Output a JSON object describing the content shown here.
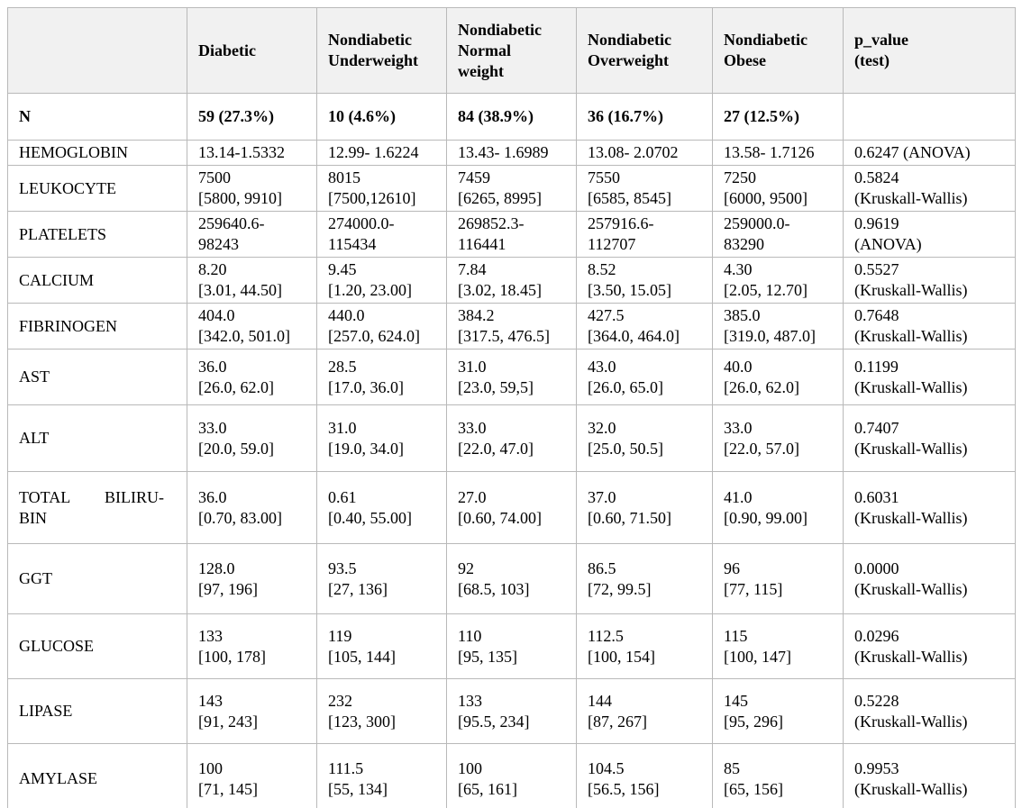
{
  "table": {
    "columns": [
      {
        "label": ""
      },
      {
        "label": "Diabetic"
      },
      {
        "label": "Nondiabetic\nUnderweight"
      },
      {
        "label": "Nondiabetic\nNormal\nweight"
      },
      {
        "label": "Nondiabetic\nOverweight"
      },
      {
        "label": "Nondiabetic\nObese"
      },
      {
        "label": "p_value\n(test)"
      }
    ],
    "rows": [
      {
        "label": "N",
        "cells": [
          "59 (27.3%)",
          "10 (4.6%)",
          "84 (38.9%)",
          "36 (16.7%)",
          "27 (12.5%)",
          ""
        ]
      },
      {
        "label": "HEMOGLOBIN",
        "cells": [
          "13.14-1.5332",
          "12.99- 1.6224",
          "13.43- 1.6989",
          "13.08- 2.0702",
          "13.58- 1.7126",
          "0.6247 (ANOVA)"
        ]
      },
      {
        "label": "LEUKOCYTE",
        "cells": [
          "7500\n[5800, 9910]",
          "8015\n[7500,12610]",
          "7459\n[6265, 8995]",
          "7550\n[6585, 8545]",
          "7250\n[6000, 9500]",
          "0.5824\n(Kruskall-Wallis)"
        ]
      },
      {
        "label": "PLATELETS",
        "cells": [
          "259640.6-\n98243",
          "274000.0-\n115434",
          "269852.3-\n116441",
          "257916.6-\n112707",
          "259000.0-\n83290",
          "0.9619\n(ANOVA)"
        ]
      },
      {
        "label": "CALCIUM",
        "cells": [
          "8.20\n[3.01, 44.50]",
          "9.45\n[1.20, 23.00]",
          "7.84\n[3.02, 18.45]",
          "8.52\n[3.50, 15.05]",
          "4.30\n[2.05, 12.70]",
          "0.5527\n(Kruskall-Wallis)"
        ]
      },
      {
        "label": "FIBRINOGEN",
        "cells": [
          "404.0\n[342.0, 501.0]",
          "440.0\n[257.0, 624.0]",
          "384.2\n[317.5, 476.5]",
          "427.5\n[364.0, 464.0]",
          "385.0\n[319.0, 487.0]",
          "0.7648\n(Kruskall-Wallis)"
        ]
      },
      {
        "label": "AST",
        "cells": [
          "36.0\n[26.0, 62.0]",
          "28.5\n[17.0, 36.0]",
          "31.0\n[23.0, 59,5]",
          "43.0\n[26.0, 65.0]",
          "40.0\n[26.0, 62.0]",
          "0.1199\n(Kruskall-Wallis)"
        ]
      },
      {
        "label": "ALT",
        "cells": [
          "33.0\n[20.0, 59.0]",
          "31.0\n[19.0, 34.0]",
          "33.0\n[22.0, 47.0]",
          "32.0\n[25.0, 50.5]",
          "33.0\n[22.0, 57.0]",
          "0.7407\n(Kruskall-Wallis)"
        ]
      },
      {
        "label": "TOTAL BILIRU-\nBIN",
        "cells": [
          "36.0\n[0.70, 83.00]",
          "0.61\n[0.40, 55.00]",
          "27.0\n[0.60, 74.00]",
          "37.0\n[0.60, 71.50]",
          "41.0\n[0.90, 99.00]",
          "0.6031\n(Kruskall-Wallis)"
        ]
      },
      {
        "label": "GGT",
        "cells": [
          "128.0\n[97, 196]",
          "93.5\n[27, 136]",
          "92\n[68.5, 103]",
          "86.5\n[72, 99.5]",
          "96\n[77, 115]",
          "0.0000\n(Kruskall-Wallis)"
        ]
      },
      {
        "label": "GLUCOSE",
        "cells": [
          "133\n[100, 178]",
          "119\n[105, 144]",
          "110\n[95, 135]",
          "112.5\n[100, 154]",
          "115\n[100, 147]",
          "0.0296\n(Kruskall-Wallis)"
        ]
      },
      {
        "label": "LIPASE",
        "cells": [
          "143\n[91, 243]",
          "232\n[123, 300]",
          "133\n[95.5, 234]",
          "144\n[87, 267]",
          "145\n[95, 296]",
          "0.5228\n(Kruskall-Wallis)"
        ]
      },
      {
        "label": "AMYLASE",
        "cells": [
          "100\n[71, 145]",
          "111.5\n[55, 134]",
          "100\n[65, 161]",
          "104.5\n[56.5, 156]",
          "85\n[65, 156]",
          "0.9953\n(Kruskall-Wallis)"
        ]
      }
    ]
  }
}
